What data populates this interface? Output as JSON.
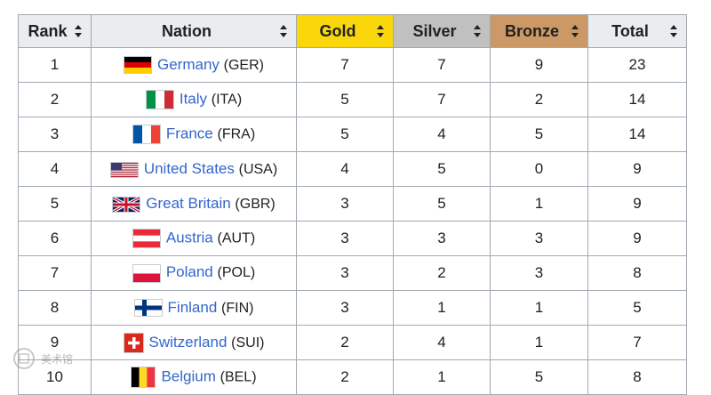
{
  "table": {
    "headers": [
      {
        "label": "Rank",
        "key": "rank"
      },
      {
        "label": "Nation",
        "key": "nation"
      },
      {
        "label": "Gold",
        "key": "gold",
        "color": "#f9d70b"
      },
      {
        "label": "Silver",
        "key": "silver",
        "color": "#c0c0c0"
      },
      {
        "label": "Bronze",
        "key": "bronze",
        "color": "#cc9966"
      },
      {
        "label": "Total",
        "key": "total"
      }
    ],
    "rows": [
      {
        "rank": "1",
        "name": "Germany",
        "code": "(GER)",
        "gold": "7",
        "silver": "7",
        "bronze": "9",
        "total": "23",
        "flag": "germany-flag-icon"
      },
      {
        "rank": "2",
        "name": "Italy",
        "code": "(ITA)",
        "gold": "5",
        "silver": "7",
        "bronze": "2",
        "total": "14",
        "flag": "italy-flag-icon"
      },
      {
        "rank": "3",
        "name": "France",
        "code": "(FRA)",
        "gold": "5",
        "silver": "4",
        "bronze": "5",
        "total": "14",
        "flag": "france-flag-icon"
      },
      {
        "rank": "4",
        "name": "United States",
        "code": "(USA)",
        "gold": "4",
        "silver": "5",
        "bronze": "0",
        "total": "9",
        "flag": "usa-flag-icon"
      },
      {
        "rank": "5",
        "name": "Great Britain",
        "code": "(GBR)",
        "gold": "3",
        "silver": "5",
        "bronze": "1",
        "total": "9",
        "flag": "uk-flag-icon"
      },
      {
        "rank": "6",
        "name": "Austria",
        "code": "(AUT)",
        "gold": "3",
        "silver": "3",
        "bronze": "3",
        "total": "9",
        "flag": "austria-flag-icon"
      },
      {
        "rank": "7",
        "name": "Poland",
        "code": "(POL)",
        "gold": "3",
        "silver": "2",
        "bronze": "3",
        "total": "8",
        "flag": "poland-flag-icon"
      },
      {
        "rank": "8",
        "name": "Finland",
        "code": "(FIN)",
        "gold": "3",
        "silver": "1",
        "bronze": "1",
        "total": "5",
        "flag": "finland-flag-icon"
      },
      {
        "rank": "9",
        "name": "Switzerland",
        "code": "(SUI)",
        "gold": "2",
        "silver": "4",
        "bronze": "1",
        "total": "7",
        "flag": "switzerland-flag-icon"
      },
      {
        "rank": "10",
        "name": "Belgium",
        "code": "(BEL)",
        "gold": "2",
        "silver": "1",
        "bronze": "5",
        "total": "8",
        "flag": "belgium-flag-icon"
      }
    ]
  },
  "watermark": {
    "text": "美术馆"
  }
}
